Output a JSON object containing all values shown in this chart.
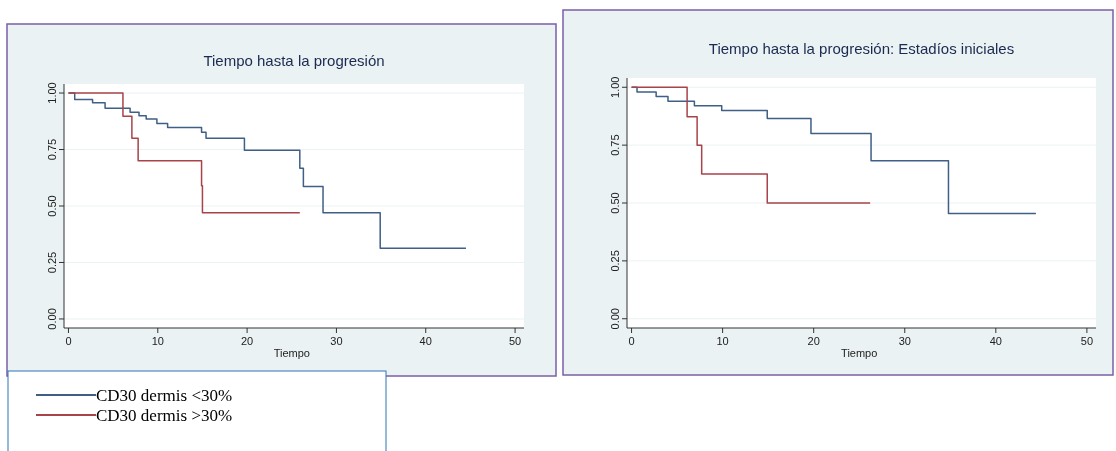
{
  "chart_data": [
    {
      "type": "step",
      "title": "Tiempo hasta la progresión",
      "xlabel": "Tiempo",
      "xlim": [
        -0.5,
        51
      ],
      "ylim": [
        -0.04,
        1.04
      ],
      "xticks": [
        0,
        10,
        20,
        30,
        40,
        50
      ],
      "yticks": [
        {
          "value": 0,
          "label": "0.00"
        },
        {
          "value": 0.25,
          "label": "0.25"
        },
        {
          "value": 0.5,
          "label": "0.50"
        },
        {
          "value": 0.75,
          "label": "0.75"
        },
        {
          "value": 1,
          "label": "1.00"
        }
      ],
      "grid": "y",
      "legend": "bottom left",
      "line_style": "solid",
      "series": [
        {
          "name": "CD30 dermis <30%",
          "color": "#3f5f86",
          "x": [
            0,
            0.7,
            2.7,
            4.1,
            6.9,
            7.9,
            8.7,
            9.9,
            11.1,
            14.9,
            15.4,
            19.7,
            25.9,
            26.3,
            28.5,
            34.9,
            44.5
          ],
          "values": [
            1,
            0.971,
            0.957,
            0.933,
            0.915,
            0.9,
            0.885,
            0.865,
            0.847,
            0.826,
            0.8,
            0.747,
            0.667,
            0.586,
            0.47,
            0.313,
            0.313
          ]
        },
        {
          "name": "CD30 dermis >30%",
          "color": "#a8434a",
          "x": [
            0,
            6.1,
            7.1,
            7.8,
            14.9,
            15,
            25.9
          ],
          "values": [
            1,
            0.897,
            0.8,
            0.7,
            0.59,
            0.47,
            0.47
          ]
        }
      ]
    },
    {
      "type": "step",
      "title": "Tiempo hasta la progresión: Estadíos iniciales",
      "xlabel": "Tiempo",
      "xlim": [
        -0.5,
        51
      ],
      "ylim": [
        -0.04,
        1.04
      ],
      "xticks": [
        0,
        10,
        20,
        30,
        40,
        50
      ],
      "yticks": [
        {
          "value": 0,
          "label": "0.00"
        },
        {
          "value": 0.25,
          "label": "0.25"
        },
        {
          "value": 0.5,
          "label": "0.50"
        },
        {
          "value": 0.75,
          "label": "0.75"
        },
        {
          "value": 1,
          "label": "1.00"
        }
      ],
      "grid": "y",
      "line_style": "solid",
      "series": [
        {
          "color": "#3f5f86",
          "x": [
            0,
            0.6,
            2.7,
            4,
            6.9,
            9.9,
            14.9,
            19.7,
            26.3,
            34.8,
            44.4
          ],
          "values": [
            1,
            0.98,
            0.96,
            0.94,
            0.92,
            0.9,
            0.865,
            0.8,
            0.683,
            0.455,
            0.455
          ]
        },
        {
          "color": "#a8434a",
          "x": [
            0,
            6.1,
            7.2,
            7.7,
            14.9,
            26.2
          ],
          "values": [
            1,
            0.873,
            0.75,
            0.625,
            0.5,
            0.5
          ]
        }
      ]
    }
  ]
}
